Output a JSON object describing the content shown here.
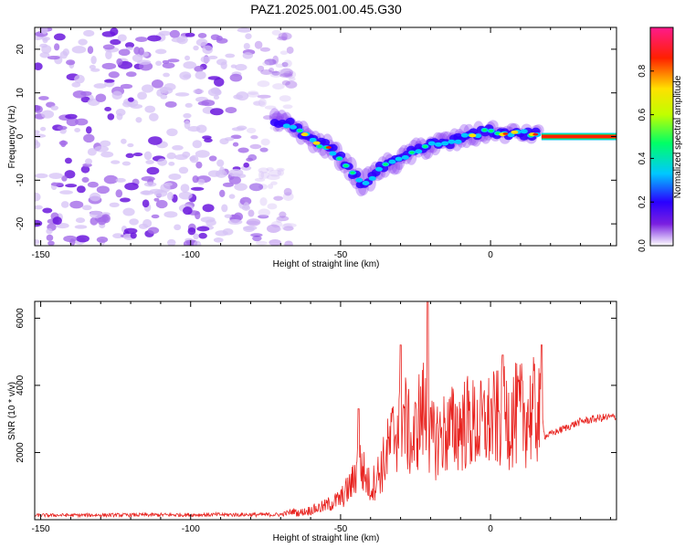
{
  "figure": {
    "title": "PAZ1.2025.001.00.45.G30"
  },
  "chart_data": [
    {
      "type": "heatmap",
      "title": "PAZ1.2025.001.00.45.G30",
      "xlabel": "Height of straight line (km)",
      "ylabel": "Frequency (Hz)",
      "xlim": [
        -152,
        42
      ],
      "ylim": [
        -25,
        25
      ],
      "xticks": [
        -150,
        -100,
        -50,
        0
      ],
      "yticks": [
        -20,
        -10,
        0,
        10,
        20
      ],
      "colorbar": {
        "label": "Normalized spectral amplitude",
        "range": [
          0,
          1
        ],
        "ticks": [
          "0.0",
          "0.2",
          "0.4",
          "0.6",
          "0.8"
        ],
        "colors": [
          "#ffffff",
          "#c9a8f4",
          "#7a1fe0",
          "#2a00ff",
          "#00c8ff",
          "#00ff66",
          "#c0ff00",
          "#ffe000",
          "#ff2000",
          "#ff1a8c"
        ]
      },
      "signal_track": {
        "x": [
          -72,
          -66,
          -62,
          -58,
          -54,
          -50,
          -46,
          -43,
          -40,
          -37,
          -34,
          -30,
          -27,
          -24,
          -20,
          -16,
          -12,
          -8,
          -4,
          0,
          4,
          8,
          12,
          16,
          20,
          30,
          40
        ],
        "frequency": [
          3.5,
          2.5,
          0.5,
          -1.5,
          -2.5,
          -5,
          -8,
          -11,
          -9.5,
          -7.5,
          -6.5,
          -5.5,
          -4,
          -3,
          -2,
          -1.5,
          -1,
          0,
          0.5,
          1.5,
          0.5,
          1,
          0.5,
          0.5,
          0,
          0,
          0
        ]
      },
      "noise_region": {
        "x_from": -152,
        "x_to": -70
      }
    },
    {
      "type": "line",
      "xlabel": "Height of straight line (km)",
      "ylabel": "SNR (10 * v/v)",
      "xlim": [
        -152,
        42
      ],
      "ylim": [
        0,
        6500
      ],
      "xticks": [
        -150,
        -100,
        -50,
        0
      ],
      "yticks": [
        2000,
        4000,
        6000
      ],
      "series": [
        {
          "color": "#e8231f",
          "envelope": {
            "x": [
              -152,
              -120,
              -90,
              -70,
              -62,
              -56,
              -50,
              -46,
              -44,
              -40,
              -36,
              -32,
              -29,
              -26,
              -24,
              -22,
              -20,
              -16,
              -12,
              -8,
              -4,
              0,
              4,
              8,
              12,
              16,
              17,
              18,
              22,
              26,
              30,
              36,
              42
            ],
            "y": [
              130,
              140,
              150,
              150,
              330,
              520,
              850,
              1500,
              2400,
              1300,
              2200,
              3600,
              4300,
              3000,
              4100,
              4500,
              3200,
              3500,
              3750,
              4000,
              3800,
              4050,
              4150,
              4250,
              4350,
              4450,
              3500,
              2500,
              2650,
              2800,
              2950,
              3050,
              3100
            ]
          }
        }
      ],
      "peaks": [
        {
          "x": -21,
          "y": 6500
        },
        {
          "x": -30,
          "y": 5200
        },
        {
          "x": -44,
          "y": 3300
        },
        {
          "x": 17,
          "y": 5200
        },
        {
          "x": 4,
          "y": 4900
        }
      ]
    }
  ]
}
